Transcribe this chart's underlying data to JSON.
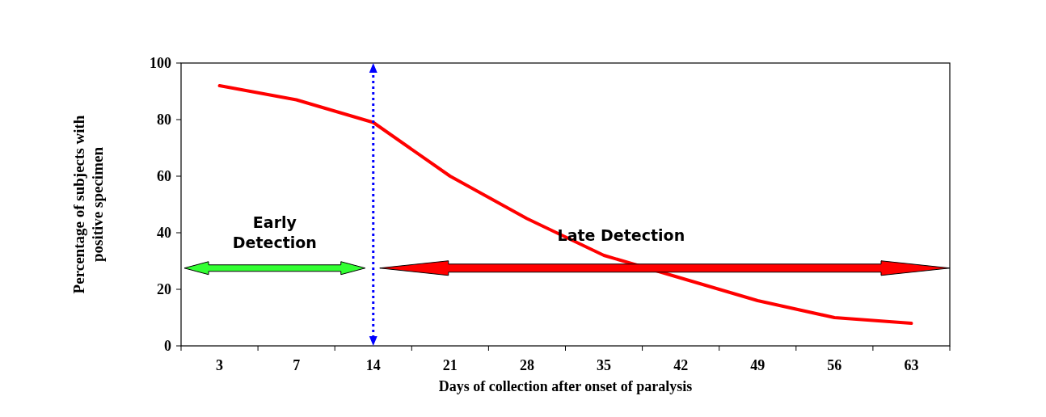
{
  "chart_data": {
    "type": "line",
    "xlabel": "Days of collection after onset of paralysis",
    "ylabel": "Percentage of subjects with positive specimen",
    "categories": [
      "3",
      "7",
      "14",
      "21",
      "28",
      "35",
      "42",
      "49",
      "56",
      "63"
    ],
    "series": [
      {
        "color": "#ff0000",
        "values": [
          92,
          87,
          79,
          60,
          45,
          32,
          24,
          16,
          10,
          8
        ]
      }
    ],
    "ylim": [
      0,
      100
    ],
    "yticks": [
      0,
      20,
      40,
      60,
      80,
      100
    ],
    "grid": false,
    "marker": "none",
    "line_style": "solid",
    "ref_lines": [
      {
        "axis": "x",
        "value": "14",
        "color": "#0000ff",
        "line_style": "dotted"
      }
    ],
    "annotations": [
      "Early Detection",
      "Late Detection"
    ]
  }
}
